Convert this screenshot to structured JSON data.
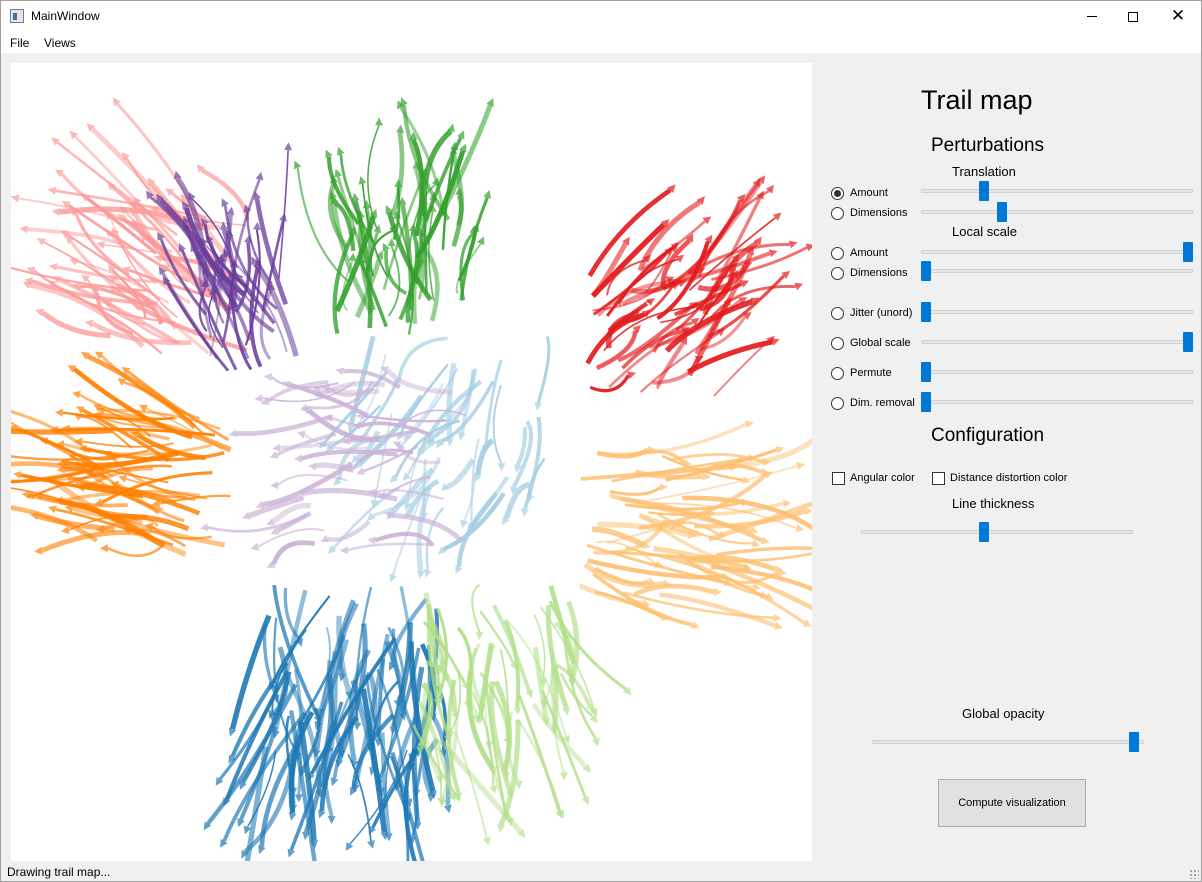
{
  "window": {
    "title": "MainWindow",
    "minimize_icon": "minimize-icon",
    "maximize_icon": "maximize-icon",
    "close_icon": "close-icon",
    "close_glyph": "✕"
  },
  "menu": {
    "file": "File",
    "views": "Views"
  },
  "panel": {
    "title": "Trail map",
    "perturbations_heading": "Perturbations",
    "translation_heading": "Translation",
    "local_scale_heading": "Local scale",
    "configuration_heading": "Configuration",
    "line_thickness_label": "Line thickness",
    "global_opacity_label": "Global opacity",
    "compute_label": "Compute visualization",
    "options": [
      {
        "label": "Amount",
        "checked": true,
        "value": 0.22
      },
      {
        "label": "Dimensions",
        "checked": false,
        "value": 0.29
      },
      {
        "label": "Amount",
        "checked": false,
        "value": 1.0
      },
      {
        "label": "Dimensions",
        "checked": false,
        "value": 0.0
      },
      {
        "label": "Jitter (unord)",
        "checked": false,
        "value": 0.0
      },
      {
        "label": "Global scale",
        "checked": false,
        "value": 1.0
      },
      {
        "label": "Permute",
        "checked": false,
        "value": 0.0
      },
      {
        "label": "Dim. removal",
        "checked": false,
        "value": 0.0
      }
    ],
    "angular_color_label": "Angular color",
    "angular_color_checked": false,
    "distortion_color_label": "Distance distortion color",
    "distortion_color_checked": false,
    "line_thickness_value": 0.45,
    "global_opacity_value": 0.98,
    "accent_color": "#0078d7"
  },
  "status": {
    "text": "Drawing trail map..."
  },
  "trail_clusters": [
    {
      "name": "red",
      "color": "#e31a1c"
    },
    {
      "name": "green",
      "color": "#33a02c"
    },
    {
      "name": "purple",
      "color": "#6a3d9a"
    },
    {
      "name": "pink",
      "color": "#fb9a99"
    },
    {
      "name": "orange",
      "color": "#ff7f00"
    },
    {
      "name": "light-orange",
      "color": "#fdbf6f"
    },
    {
      "name": "blue",
      "color": "#1f78b4"
    },
    {
      "name": "light-green",
      "color": "#b2df8a"
    },
    {
      "name": "light-blue",
      "color": "#a6cee3"
    },
    {
      "name": "lavender",
      "color": "#cab2d6"
    }
  ]
}
